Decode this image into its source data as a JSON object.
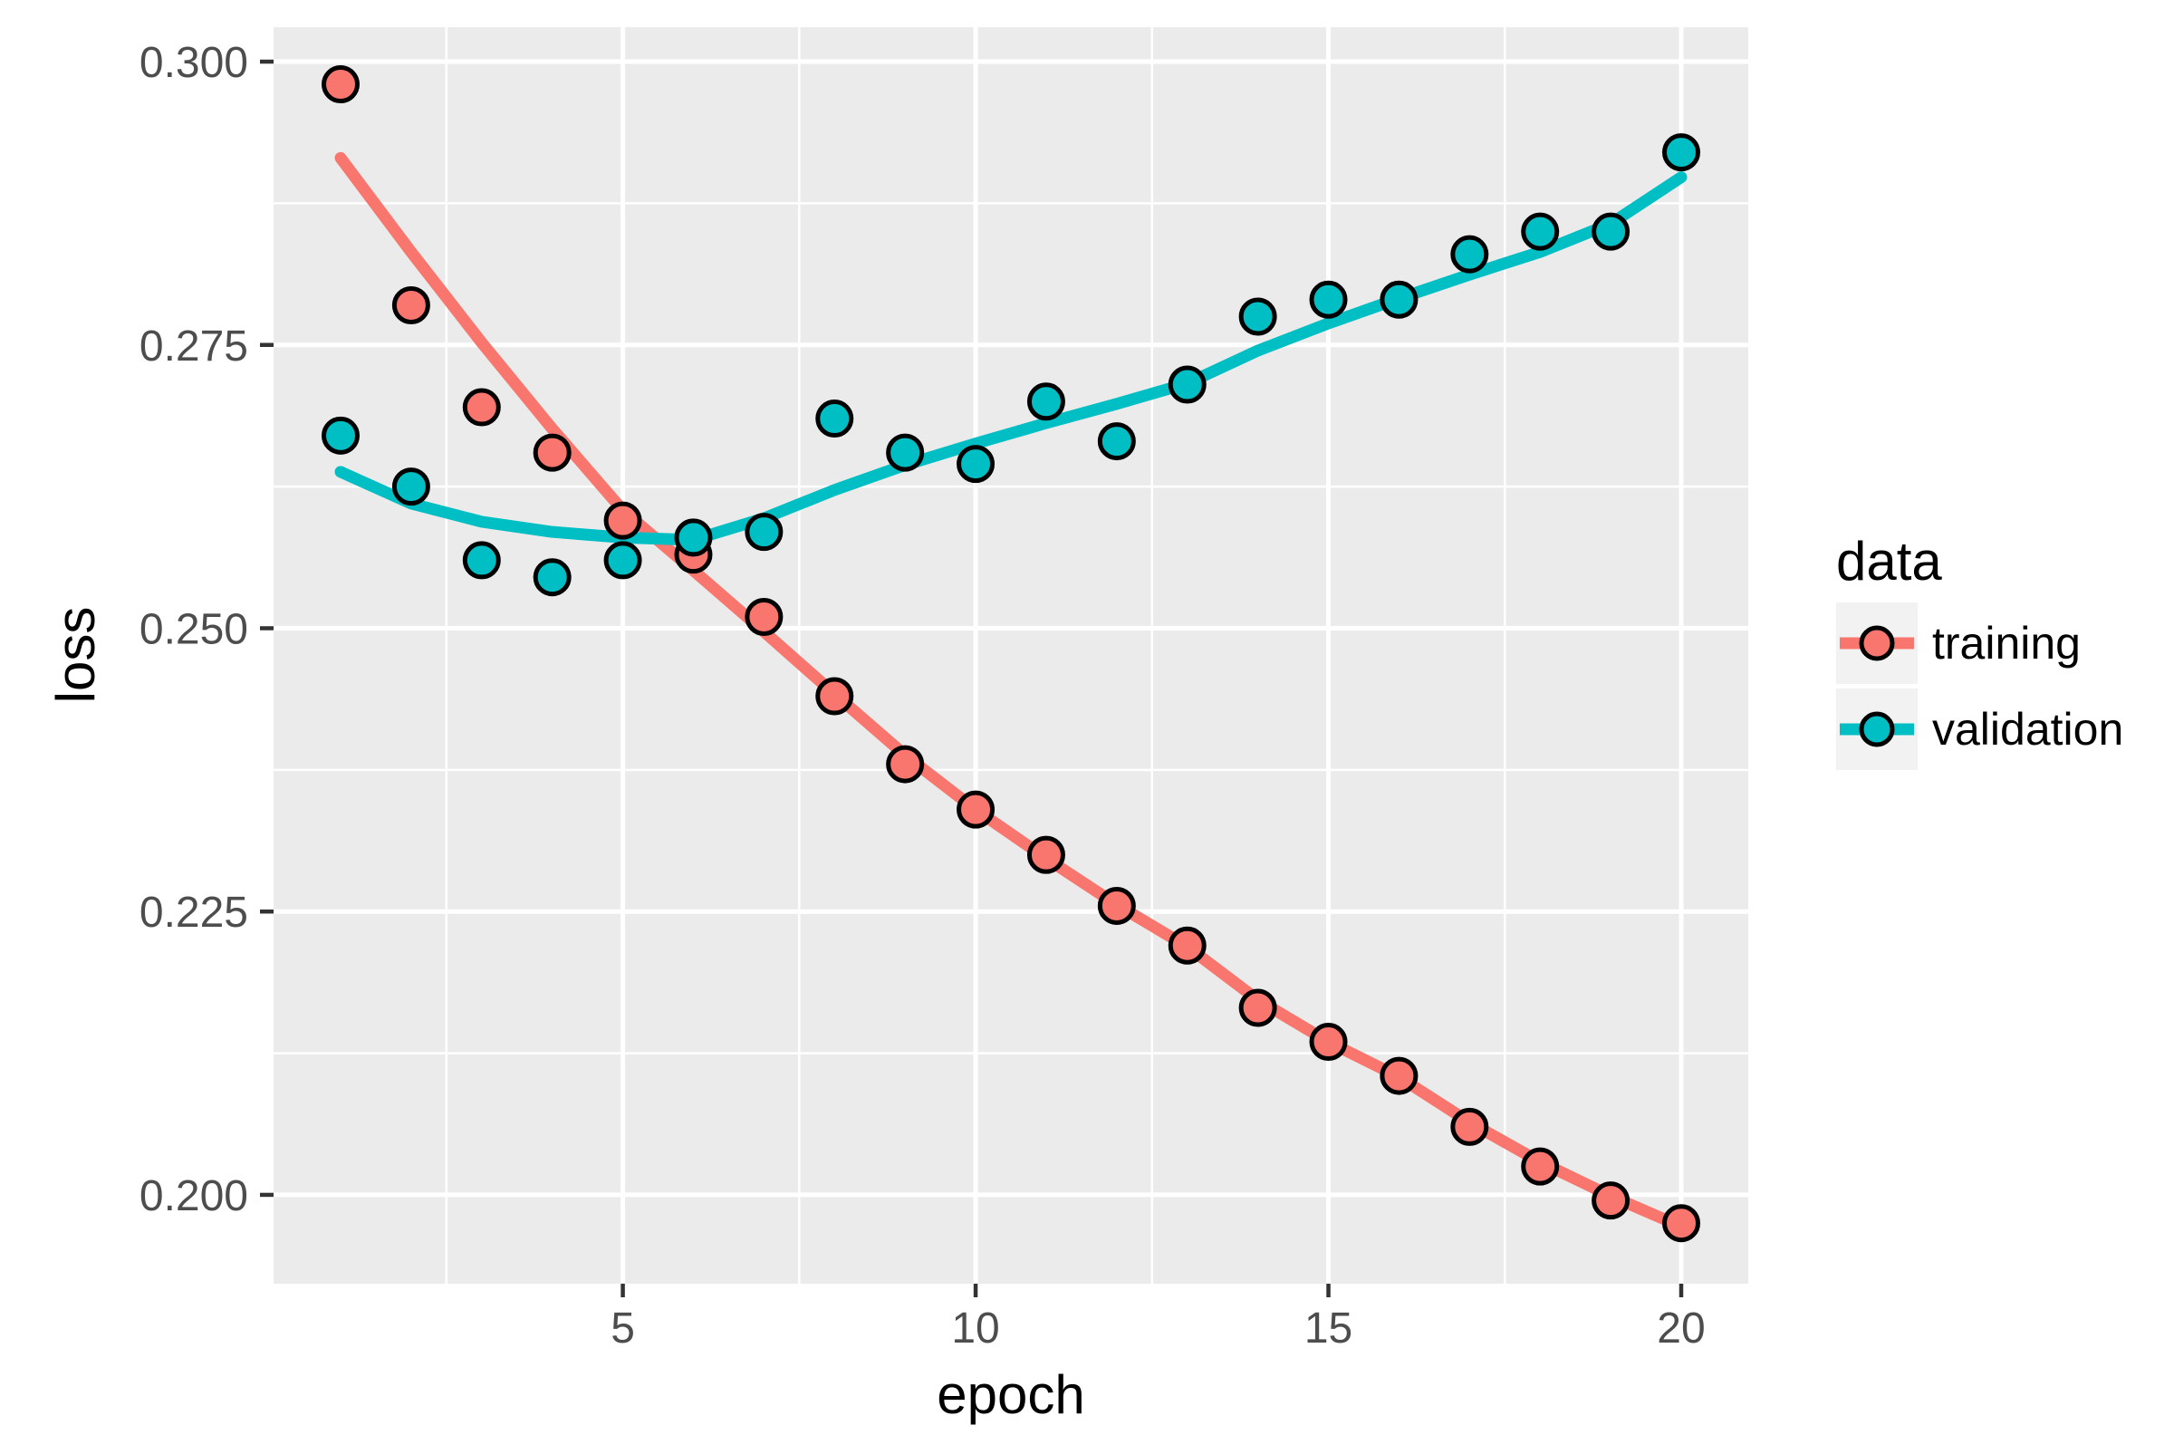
{
  "colors": {
    "page_background": "#FFFFFF",
    "panel_background": "#EBEBEB",
    "gridline": "#FFFFFF",
    "tick_mark": "#333333",
    "tick_label": "#4D4D4D",
    "axis_title": "#000000",
    "legend_key_background": "#F2F2F2",
    "point_outline": "#000000",
    "training": "#F8766D",
    "validation": "#00BFC4"
  },
  "chart_data": {
    "type": "scatter",
    "title": "",
    "xlabel": "epoch",
    "ylabel": "loss",
    "grid": true,
    "panel_style": "ggplot2-grey",
    "xlim": [
      0.05,
      20.95
    ],
    "ylim": [
      0.19216,
      0.30304
    ],
    "x_ticks": [
      5,
      10,
      15,
      20
    ],
    "x_tick_labels": [
      "5",
      "10",
      "15",
      "20"
    ],
    "x_minor_gridlines": [
      2.5,
      7.5,
      12.5,
      17.5
    ],
    "y_ticks": [
      0.2,
      0.225,
      0.25,
      0.275,
      0.3
    ],
    "y_tick_labels": [
      "0.200",
      "0.225",
      "0.250",
      "0.275",
      "0.300"
    ],
    "y_minor_gridlines": [
      0.2125,
      0.2375,
      0.2625,
      0.2875
    ],
    "legend": {
      "title": "data",
      "position": "right",
      "entries": [
        {
          "label": "training",
          "color": "#F8766D"
        },
        {
          "label": "validation",
          "color": "#00BFC4"
        }
      ]
    },
    "x": [
      1,
      2,
      3,
      4,
      5,
      6,
      7,
      8,
      9,
      10,
      11,
      12,
      13,
      14,
      15,
      16,
      17,
      18,
      19,
      20
    ],
    "series": [
      {
        "name": "training",
        "color": "#F8766D",
        "points": [
          0.298,
          0.2785,
          0.2695,
          0.2655,
          0.2595,
          0.2565,
          0.251,
          0.244,
          0.238,
          0.234,
          0.23,
          0.2255,
          0.222,
          0.2165,
          0.2135,
          0.2105,
          0.206,
          0.2025,
          0.1995,
          0.1975
        ],
        "smooth": [
          0.2915,
          0.2832,
          0.2752,
          0.2676,
          0.2604,
          0.2551,
          0.2497,
          0.2442,
          0.2388,
          0.234,
          0.2297,
          0.2256,
          0.2219,
          0.2172,
          0.2135,
          0.2104,
          0.2064,
          0.2029,
          0.1999,
          0.1972
        ]
      },
      {
        "name": "validation",
        "color": "#00BFC4",
        "points": [
          0.267,
          0.2625,
          0.256,
          0.2545,
          0.256,
          0.258,
          0.2585,
          0.2685,
          0.2655,
          0.2645,
          0.27,
          0.2665,
          0.2715,
          0.2775,
          0.279,
          0.279,
          0.283,
          0.285,
          0.285,
          0.292
        ],
        "smooth": [
          0.2638,
          0.261,
          0.2594,
          0.2585,
          0.258,
          0.2578,
          0.2597,
          0.2622,
          0.2644,
          0.2663,
          0.2681,
          0.2698,
          0.2716,
          0.2745,
          0.2769,
          0.2791,
          0.2812,
          0.2832,
          0.2857,
          0.2898
        ]
      }
    ]
  }
}
